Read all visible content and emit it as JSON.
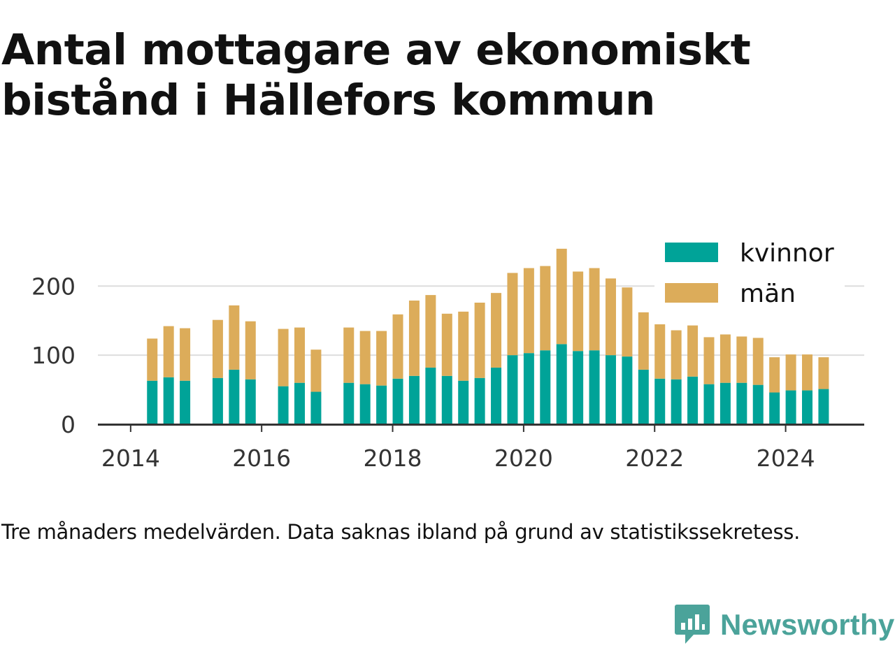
{
  "title": "Antal mottagare av ekonomiskt bistånd i Hällefors kommun",
  "caption": "Tre månaders medelvärden. Data saknas ibland på grund av statistikssekretess.",
  "brand": {
    "name": "Newsworthy",
    "icon": "newsworthy-bar-chart-logo-icon",
    "color": "#4ba39a"
  },
  "colors": {
    "kvinnor": "#00a398",
    "man": "#dcac5a",
    "axis": "#333333",
    "grid": "#dddddd"
  },
  "chart_data": {
    "type": "bar",
    "stacked": true,
    "title": "Antal mottagare av ekonomiskt bistånd i Hällefors kommun",
    "x": [
      2014.33,
      2014.58,
      2014.83,
      2015.33,
      2015.58,
      2015.83,
      2016.33,
      2016.58,
      2016.83,
      2017.33,
      2017.58,
      2017.83,
      2018.08,
      2018.33,
      2018.58,
      2018.83,
      2019.08,
      2019.33,
      2019.58,
      2019.83,
      2020.08,
      2020.33,
      2020.58,
      2020.83,
      2021.08,
      2021.33,
      2021.58,
      2021.83,
      2022.08,
      2022.33,
      2022.58,
      2022.83,
      2023.08,
      2023.33,
      2023.58,
      2023.83,
      2024.08,
      2024.33,
      2024.58
    ],
    "series": [
      {
        "name": "kvinnor",
        "values": [
          63,
          68,
          63,
          67,
          79,
          65,
          55,
          60,
          47,
          60,
          58,
          56,
          66,
          70,
          82,
          70,
          63,
          67,
          82,
          100,
          103,
          107,
          116,
          106,
          107,
          100,
          98,
          79,
          66,
          65,
          69,
          58,
          60,
          60,
          57,
          46,
          49,
          49,
          51
        ]
      },
      {
        "name": "män",
        "values": [
          61,
          74,
          76,
          84,
          93,
          84,
          83,
          80,
          61,
          80,
          77,
          79,
          93,
          109,
          105,
          90,
          100,
          109,
          108,
          119,
          123,
          122,
          138,
          115,
          119,
          111,
          100,
          83,
          80,
          71,
          74,
          68,
          70,
          67,
          68,
          51,
          52,
          52,
          46
        ]
      }
    ],
    "x_ticks": [
      "2014",
      "2016",
      "2018",
      "2020",
      "2022",
      "2024"
    ],
    "y_ticks": [
      "0",
      "100",
      "200"
    ],
    "xlim": [
      2013.5,
      2025.2
    ],
    "ylim": [
      0,
      265
    ],
    "grid": true,
    "legend_position": "top-right",
    "xlabel": "",
    "ylabel": ""
  }
}
